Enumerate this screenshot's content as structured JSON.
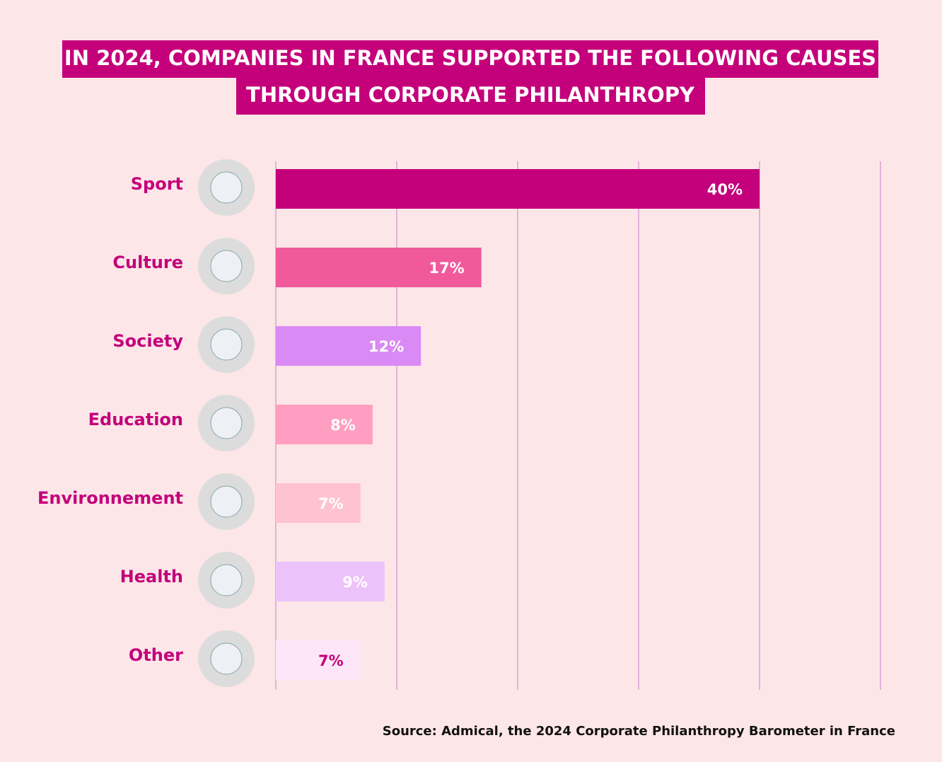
{
  "chart_data": {
    "type": "hbar",
    "title": [
      "IN 2024, COMPANIES IN FRANCE SUPPORTED THE FOLLOWING CAUSES",
      "THROUGH CORPORATE PHILANTHROPY"
    ],
    "categories": [
      "Sport",
      "Culture",
      "Society",
      "Education",
      "Environnement",
      "Health",
      "Other"
    ],
    "values": [
      40,
      17,
      12,
      8,
      7,
      9,
      7
    ],
    "value_labels": [
      "40%",
      "17%",
      "12%",
      "8%",
      "7%",
      "9%",
      "7%"
    ],
    "colors": [
      "#c4007a",
      "#f05a9b",
      "#d98af5",
      "#ff9ec0",
      "#ffc2cf",
      "#ecc2fa",
      "#fde6f7"
    ],
    "value_label_colors": [
      "#ffffff",
      "#ffffff",
      "#ffffff",
      "#ffffff",
      "#ffffff",
      "#ffffff",
      "#c4007a"
    ],
    "xlim": [
      0,
      50
    ],
    "gridlines": [
      0,
      10,
      20,
      30,
      40,
      50
    ],
    "grid": true,
    "source": "Source: Admical, the 2024 Corporate Philanthropy Barometer in France"
  }
}
